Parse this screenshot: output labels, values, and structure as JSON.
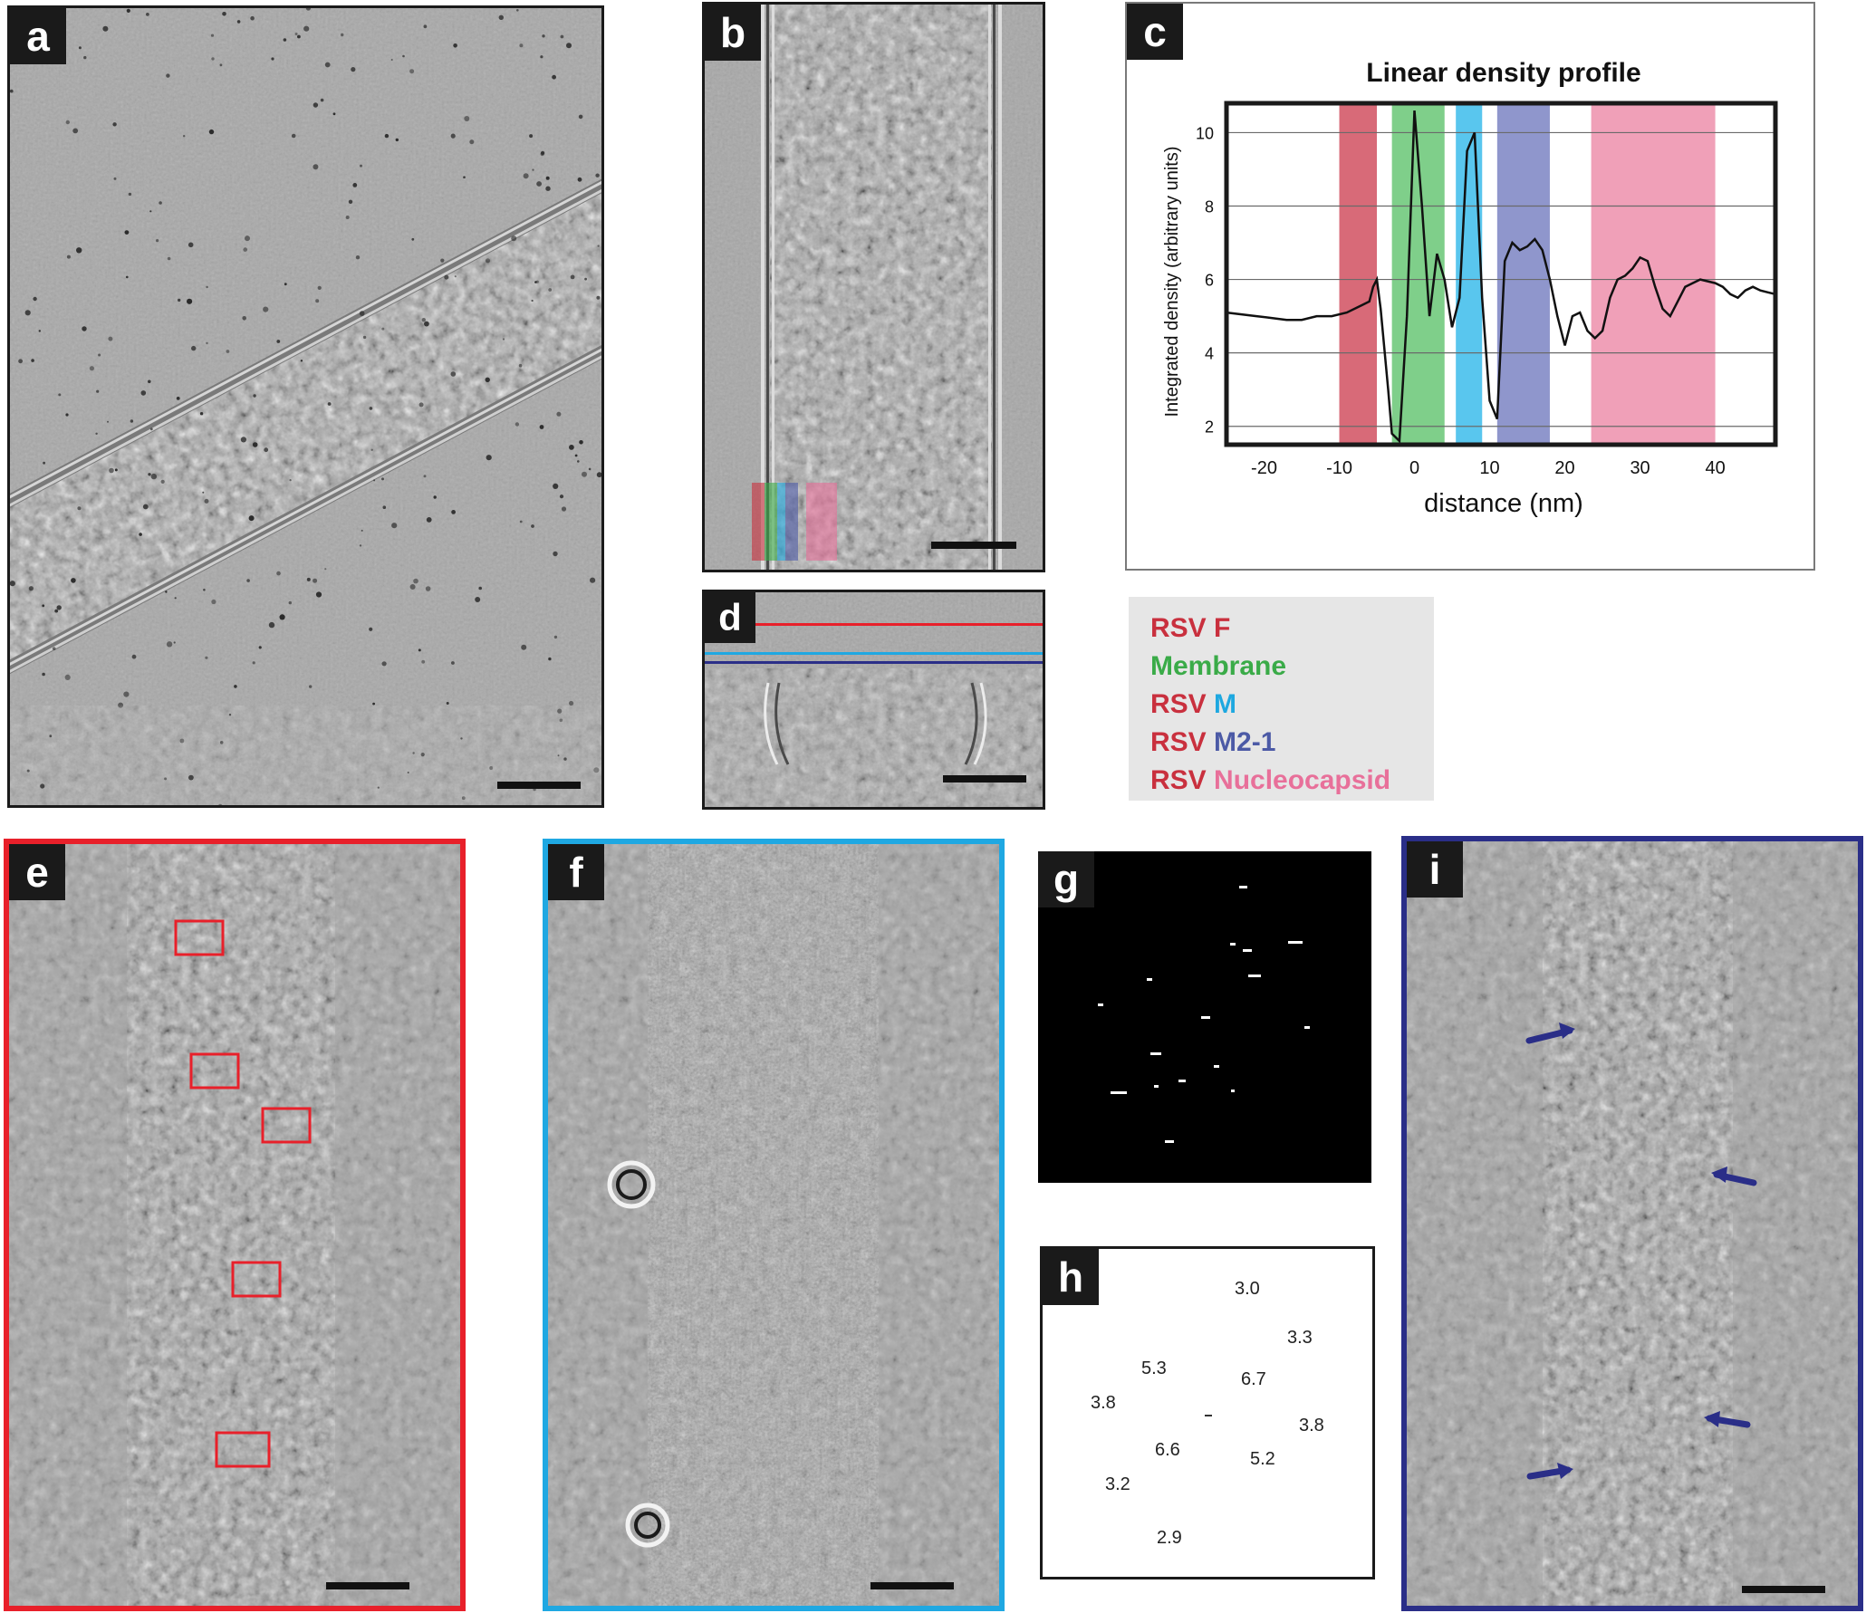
{
  "panels": {
    "a": {
      "letter": "a"
    },
    "b": {
      "letter": "b"
    },
    "c": {
      "letter": "c"
    },
    "d": {
      "letter": "d"
    },
    "e": {
      "letter": "e"
    },
    "f": {
      "letter": "f"
    },
    "g": {
      "letter": "g"
    },
    "h": {
      "letter": "h"
    },
    "i": {
      "letter": "i"
    }
  },
  "legend": [
    {
      "prefix": "RSV",
      "label": "F",
      "color": "#c9303e"
    },
    {
      "prefix": "",
      "label": "Membrane",
      "color": "#3aab48"
    },
    {
      "prefix": "RSV",
      "label": "M",
      "color": "#1ea8e0"
    },
    {
      "prefix": "RSV",
      "label": "M2-1",
      "color": "#4c5aa6"
    },
    {
      "prefix": "RSV",
      "label": "Nucleocapsid",
      "color": "#e8709a"
    }
  ],
  "legend_prefix_color": "#c9303e",
  "chart_data": {
    "type": "line",
    "title": "Linear density profile",
    "xlabel": "distance (nm)",
    "ylabel": "Integrated density (arbitrary units)",
    "xlim": [
      -25,
      48
    ],
    "ylim": [
      1.5,
      10.8
    ],
    "xticks": [
      -20,
      -10,
      0,
      10,
      20,
      30,
      40
    ],
    "yticks": [
      2,
      4,
      6,
      8,
      10
    ],
    "grid": "horizontal",
    "bands": [
      {
        "name": "RSV F",
        "x0": -10,
        "x1": -5,
        "color": "#d86a78"
      },
      {
        "name": "Membrane",
        "x0": -3,
        "x1": 4,
        "color": "#7fcf8a"
      },
      {
        "name": "RSV M",
        "x0": 5.5,
        "x1": 9,
        "color": "#59c6ee"
      },
      {
        "name": "RSV M2-1",
        "x0": 11,
        "x1": 18,
        "color": "#8f96cc"
      },
      {
        "name": "RSV Nucleocapsid",
        "x0": 23.5,
        "x1": 40,
        "color": "#f0a0b8"
      }
    ],
    "series": [
      {
        "x": [
          -25,
          -23,
          -21,
          -19,
          -17,
          -15,
          -13,
          -11,
          -9,
          -7,
          -6,
          -5.5,
          -5,
          -4.5,
          -3.5,
          -3,
          -2,
          -1,
          0,
          1,
          2,
          3,
          4,
          5,
          6,
          7,
          8,
          9,
          10,
          11,
          12,
          13,
          14,
          15,
          16,
          17,
          18,
          19,
          20,
          21,
          22,
          23,
          24,
          25,
          26,
          27,
          28,
          29,
          30,
          31,
          32,
          33,
          34,
          35,
          36,
          37,
          38,
          39,
          40,
          41,
          42,
          43,
          44,
          45,
          46,
          47,
          48
        ],
        "y": [
          5.1,
          5.05,
          5.0,
          4.95,
          4.9,
          4.9,
          5.0,
          5.0,
          5.1,
          5.3,
          5.4,
          5.8,
          6.0,
          5.2,
          3.0,
          1.8,
          1.6,
          5.0,
          10.6,
          8.0,
          5.0,
          6.7,
          6.0,
          4.7,
          5.5,
          9.5,
          10.0,
          5.5,
          2.7,
          2.2,
          6.5,
          7.0,
          6.8,
          6.9,
          7.1,
          6.8,
          6.0,
          5.0,
          4.2,
          5.0,
          5.1,
          4.6,
          4.4,
          4.6,
          5.5,
          6.0,
          6.1,
          6.3,
          6.6,
          6.5,
          5.8,
          5.2,
          5.0,
          5.4,
          5.8,
          5.9,
          6.0,
          5.95,
          5.9,
          5.8,
          5.6,
          5.5,
          5.7,
          5.8,
          5.7,
          5.65,
          5.6
        ]
      }
    ]
  },
  "fft_values": [
    {
      "text": "3.0"
    },
    {
      "text": "3.3"
    },
    {
      "text": "5.3"
    },
    {
      "text": "6.7"
    },
    {
      "text": "3.8"
    },
    {
      "text": "3.8"
    },
    {
      "text": "6.6"
    },
    {
      "text": "5.2"
    },
    {
      "text": "3.2"
    },
    {
      "text": "2.9"
    }
  ],
  "frame_colors": {
    "e": "#e8202a",
    "f": "#1fa8e2",
    "i": "#2a2e88"
  }
}
